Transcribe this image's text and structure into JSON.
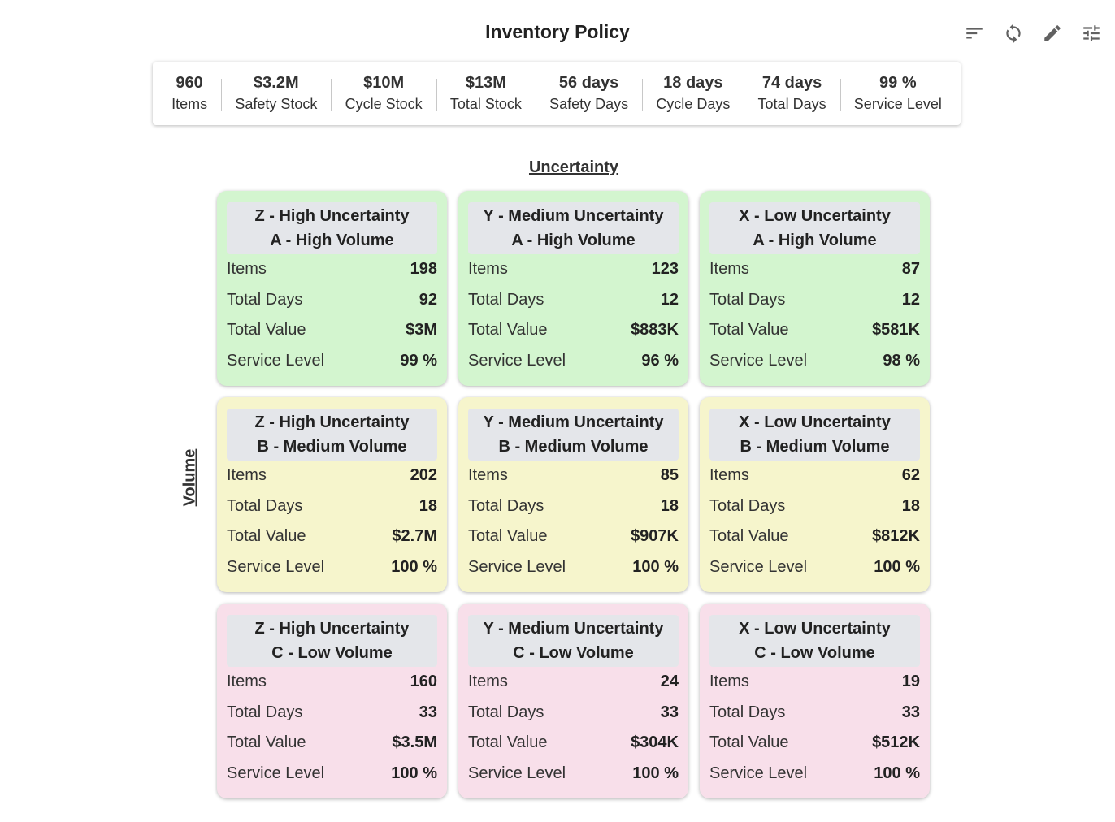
{
  "header": {
    "title": "Inventory Policy"
  },
  "toolbar": [
    {
      "name": "sort-icon",
      "label": "Sort"
    },
    {
      "name": "refresh-icon",
      "label": "Refresh"
    },
    {
      "name": "edit-icon",
      "label": "Edit"
    },
    {
      "name": "tune-icon",
      "label": "Filters"
    }
  ],
  "kpis": [
    {
      "value": "960",
      "label": "Items"
    },
    {
      "value": "$3.2M",
      "label": "Safety Stock"
    },
    {
      "value": "$10M",
      "label": "Cycle Stock"
    },
    {
      "value": "$13M",
      "label": "Total Stock"
    },
    {
      "value": "56 days",
      "label": "Safety Days"
    },
    {
      "value": "18 days",
      "label": "Cycle Days"
    },
    {
      "value": "74 days",
      "label": "Total Days"
    },
    {
      "value": "99 %",
      "label": "Service Level"
    }
  ],
  "axes": {
    "x_label": "Uncertainty",
    "y_label": "Volume"
  },
  "colors": {
    "high_volume_bg": "#d3f5cf",
    "medium_volume_bg": "#f6f5cc",
    "low_volume_bg": "#f8dfea",
    "header_bg": "#e4e6ea"
  },
  "metric_labels": {
    "items": "Items",
    "total_days": "Total Days",
    "total_value": "Total Value",
    "service_level": "Service Level"
  },
  "matrix": [
    {
      "uncertainty": "Z - High Uncertainty",
      "volume": "A - High Volume",
      "items": "198",
      "total_days": "92",
      "total_value": "$3M",
      "service_level": "99 %"
    },
    {
      "uncertainty": "Y - Medium Uncertainty",
      "volume": "A - High Volume",
      "items": "123",
      "total_days": "12",
      "total_value": "$883K",
      "service_level": "96 %"
    },
    {
      "uncertainty": "X - Low Uncertainty",
      "volume": "A - High Volume",
      "items": "87",
      "total_days": "12",
      "total_value": "$581K",
      "service_level": "98 %"
    },
    {
      "uncertainty": "Z - High Uncertainty",
      "volume": "B - Medium Volume",
      "items": "202",
      "total_days": "18",
      "total_value": "$2.7M",
      "service_level": "100 %"
    },
    {
      "uncertainty": "Y - Medium Uncertainty",
      "volume": "B - Medium Volume",
      "items": "85",
      "total_days": "18",
      "total_value": "$907K",
      "service_level": "100 %"
    },
    {
      "uncertainty": "X - Low Uncertainty",
      "volume": "B - Medium Volume",
      "items": "62",
      "total_days": "18",
      "total_value": "$812K",
      "service_level": "100 %"
    },
    {
      "uncertainty": "Z - High Uncertainty",
      "volume": "C - Low Volume",
      "items": "160",
      "total_days": "33",
      "total_value": "$3.5M",
      "service_level": "100 %"
    },
    {
      "uncertainty": "Y - Medium Uncertainty",
      "volume": "C - Low Volume",
      "items": "24",
      "total_days": "33",
      "total_value": "$304K",
      "service_level": "100 %"
    },
    {
      "uncertainty": "X - Low Uncertainty",
      "volume": "C - Low Volume",
      "items": "19",
      "total_days": "33",
      "total_value": "$512K",
      "service_level": "100 %"
    }
  ]
}
